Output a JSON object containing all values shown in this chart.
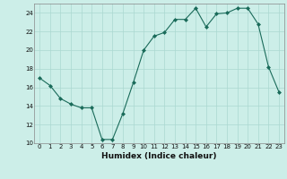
{
  "x": [
    0,
    1,
    2,
    3,
    4,
    5,
    6,
    7,
    8,
    9,
    10,
    11,
    12,
    13,
    14,
    15,
    16,
    17,
    18,
    19,
    20,
    21,
    22,
    23
  ],
  "y": [
    17.0,
    16.2,
    14.8,
    14.2,
    13.8,
    13.8,
    10.4,
    10.4,
    13.2,
    16.5,
    20.0,
    21.5,
    21.9,
    23.3,
    23.3,
    24.5,
    22.5,
    23.9,
    24.0,
    24.5,
    24.5,
    22.8,
    18.2,
    15.5
  ],
  "line_color": "#1a6b5a",
  "marker": "D",
  "marker_size": 2,
  "background_color": "#cceee8",
  "grid_color": "#aad8d0",
  "xlabel": "Humidex (Indice chaleur)",
  "ylim": [
    10,
    25
  ],
  "xlim": [
    -0.5,
    23.5
  ],
  "yticks": [
    10,
    12,
    14,
    16,
    18,
    20,
    22,
    24
  ],
  "xticks": [
    0,
    1,
    2,
    3,
    4,
    5,
    6,
    7,
    8,
    9,
    10,
    11,
    12,
    13,
    14,
    15,
    16,
    17,
    18,
    19,
    20,
    21,
    22,
    23
  ],
  "tick_fontsize": 5,
  "xlabel_fontsize": 6.5,
  "linewidth": 0.8
}
